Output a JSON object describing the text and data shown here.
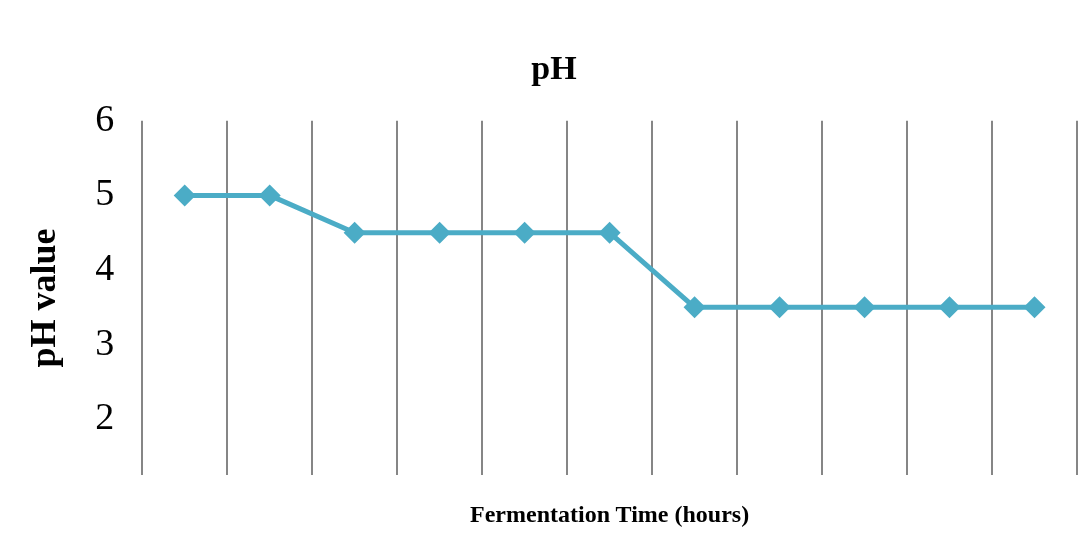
{
  "chart_data": {
    "type": "line",
    "title": "pH",
    "xlabel": "Fermentation Time (hours)",
    "ylabel": "pH value",
    "categories": [
      null,
      null,
      null,
      null,
      null,
      null,
      null,
      null,
      null,
      null,
      null
    ],
    "series": [
      {
        "color": "#4bacc6",
        "values": [
          5,
          5,
          4.5,
          4.5,
          4.5,
          4.5,
          3.5,
          3.5,
          3.5,
          3.5,
          3.5
        ]
      }
    ],
    "ylim": [
      1.25,
      6
    ],
    "yticks": [
      2,
      3,
      4,
      5,
      6
    ],
    "grid": "x",
    "marker": "diamond",
    "line_style": "solid",
    "legend": false
  }
}
